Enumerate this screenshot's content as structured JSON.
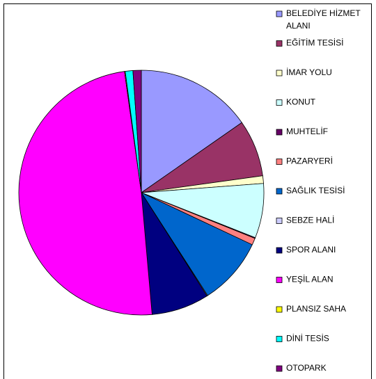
{
  "chart_data": {
    "type": "pie",
    "categories": [
      "BELEDİYE HİZMET ALANI",
      "EĞİTİM TESİSİ",
      "İMAR YOLU",
      "KONUT",
      "MUHTELİF",
      "PAZARYERİ",
      "SAĞLIK TESİSİ",
      "SEBZE HALİ",
      "SPOR ALANI",
      "YEŞİL ALAN",
      "PLANSIZ SAHA",
      "DİNİ TESİS",
      "OTOPARK"
    ],
    "values": [
      15.3,
      7.5,
      1.0,
      7.2,
      0.1,
      0.9,
      8.9,
      0.1,
      7.6,
      49.2,
      0.1,
      1.0,
      1.1
    ],
    "colors": [
      "#9999ff",
      "#993366",
      "#ffffcc",
      "#ccffff",
      "#660066",
      "#ff8080",
      "#0066cc",
      "#ccccff",
      "#000080",
      "#ff00ff",
      "#ffff00",
      "#00ffff",
      "#800080"
    ],
    "legend": "right"
  }
}
